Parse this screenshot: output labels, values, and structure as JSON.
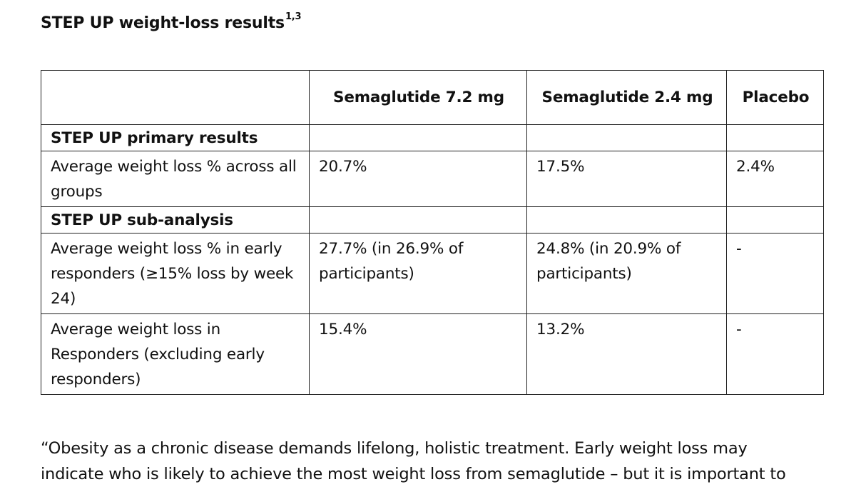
{
  "heading": {
    "text": "STEP UP weight-loss results",
    "superscript": "1,3"
  },
  "table": {
    "columns": [
      "",
      "Semaglutide 7.2 mg",
      "Semaglutide 2.4 mg",
      "Placebo"
    ],
    "sections": [
      {
        "title": "STEP UP primary results",
        "rows": [
          {
            "label": "Average weight loss % across all groups",
            "values": [
              "20.7%",
              "17.5%",
              "2.4%"
            ]
          }
        ]
      },
      {
        "title": "STEP UP sub-analysis",
        "rows": [
          {
            "label": "Average weight loss % in early responders (≥15% loss by week 24)",
            "values": [
              "27.7% (in 26.9% of participants)",
              "24.8% (in 20.9% of participants)",
              "-"
            ]
          },
          {
            "label": "Average weight loss in Responders (excluding early responders)",
            "values": [
              "15.4%",
              "13.2%",
              "-"
            ]
          }
        ]
      }
    ]
  },
  "quote": {
    "line1": "“Obesity as a chronic disease demands lifelong, holistic treatment. Early weight loss may",
    "line2": "indicate who is likely to achieve the most weight loss from semaglutide – but it is important to"
  }
}
